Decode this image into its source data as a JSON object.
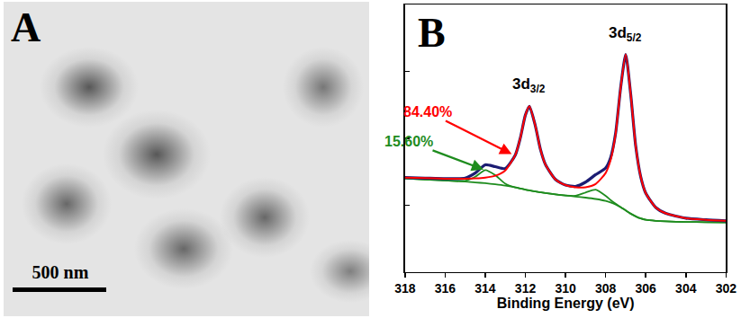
{
  "image": {
    "label": "A",
    "scale_bar": "500 nm"
  },
  "chart_data": {
    "type": "line",
    "x_label": "Binding Energy (eV)",
    "x": [
      318,
      317,
      316,
      315,
      314.5,
      314,
      313.5,
      313,
      312.5,
      312.25,
      312,
      311.8,
      311.5,
      311.25,
      311,
      310.5,
      310,
      309.5,
      309,
      308.5,
      308,
      307.75,
      307.5,
      307.25,
      307,
      306.75,
      306.5,
      306.25,
      306,
      305.5,
      305,
      304,
      303,
      302
    ],
    "series": [
      {
        "color": "#1c1c73",
        "values": [
          35.3,
          35.1,
          34.9,
          35.1,
          37.0,
          40.1,
          39.4,
          38.7,
          43.8,
          50.2,
          58.7,
          62.0,
          54.6,
          45.9,
          40.2,
          34.6,
          32.5,
          32.0,
          33.6,
          36.4,
          38.9,
          42.8,
          52.0,
          69.1,
          81.4,
          66.5,
          47.1,
          35.6,
          29.5,
          24.1,
          21.9,
          20.1,
          19.5,
          19.1
        ]
      },
      {
        "color": "#ff0000",
        "values": [
          35.3,
          35.1,
          34.9,
          34.9,
          35.0,
          35.3,
          36.0,
          38.0,
          43.8,
          50.2,
          58.7,
          62.0,
          54.6,
          45.9,
          40.2,
          34.6,
          32.5,
          31.7,
          31.7,
          32.9,
          37.0,
          41.9,
          51.7,
          69.0,
          81.4,
          66.5,
          47.1,
          35.6,
          29.5,
          24.1,
          21.9,
          20.1,
          19.5,
          19.1
        ]
      },
      {
        "color": "#1e8c1e",
        "values": [
          35.0,
          34.6,
          34.2,
          34.1,
          35.6,
          38.1,
          36.2,
          33.0,
          31.6,
          31.2,
          30.8,
          30.5,
          30.1,
          29.8,
          29.5,
          29.0,
          28.6,
          28.5,
          29.7,
          30.8,
          28.5,
          26.9,
          25.5,
          24.3,
          23.0,
          21.8,
          20.8,
          20.0,
          19.5,
          19.1,
          18.9,
          18.7,
          18.6,
          18.5
        ]
      },
      {
        "color": "#1e8c1e",
        "values": [
          35.0,
          34.6,
          34.2,
          33.8,
          33.5,
          33.2,
          32.8,
          32.3,
          31.6,
          31.2,
          30.8,
          30.5,
          30.1,
          29.8,
          29.5,
          29.0,
          28.6,
          28.2,
          27.8,
          27.3,
          26.6,
          26.0,
          25.2,
          24.2,
          23.0,
          21.8,
          20.8,
          20.0,
          19.5,
          19.1,
          18.9,
          18.7,
          18.6,
          18.5
        ]
      }
    ],
    "xlim": [
      318,
      302
    ],
    "xticks": [
      318,
      316,
      314,
      312,
      310,
      308,
      306,
      304,
      302
    ],
    "ylim": [
      0,
      100
    ],
    "yticks": [
      25,
      50,
      75
    ],
    "tick_labels": "x",
    "grid": false,
    "annotations": [
      {
        "text": "B"
      },
      {
        "text": "3d",
        "subscript": "3/2",
        "x": 311.8,
        "y": 62.0
      },
      {
        "text": "3d",
        "subscript": "5/2",
        "x": 307,
        "y": 81.4
      },
      {
        "text": "84.40%",
        "x": 312.6,
        "y": 43.8
      },
      {
        "text": "15.60%",
        "x": 314,
        "y": 38.1
      }
    ]
  }
}
